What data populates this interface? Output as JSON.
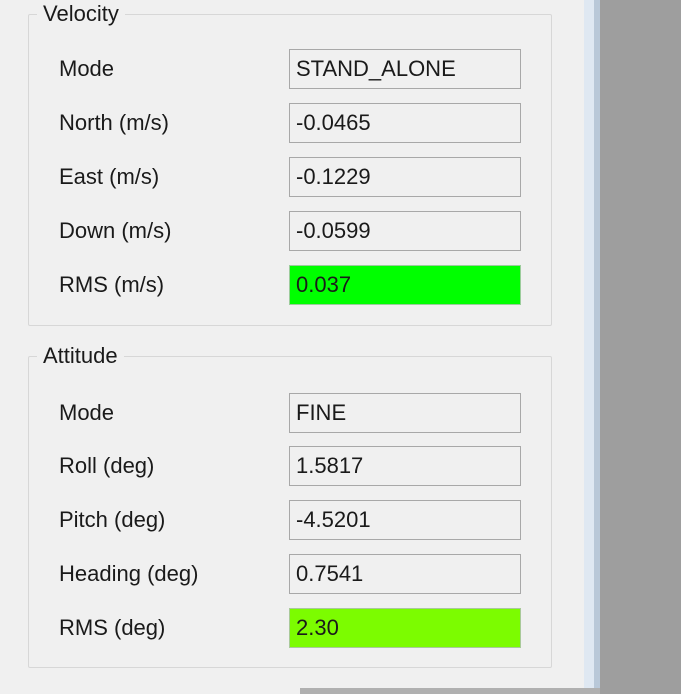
{
  "velocity": {
    "title": "Velocity",
    "rows": [
      {
        "label": "Mode",
        "value": "STAND_ALONE"
      },
      {
        "label": "North (m/s)",
        "value": "-0.0465"
      },
      {
        "label": "East (m/s)",
        "value": "-0.1229"
      },
      {
        "label": "Down (m/s)",
        "value": "-0.0599"
      },
      {
        "label": "RMS (m/s)",
        "value": "0.037"
      }
    ],
    "rms_color": "#00ff00"
  },
  "attitude": {
    "title": "Attitude",
    "rows": [
      {
        "label": "Mode",
        "value": "FINE"
      },
      {
        "label": "Roll (deg)",
        "value": "1.5817"
      },
      {
        "label": "Pitch (deg)",
        "value": "-4.5201"
      },
      {
        "label": "Heading (deg)",
        "value": "0.7541"
      },
      {
        "label": "RMS (deg)",
        "value": "2.30"
      }
    ],
    "rms_color": "#7cfc00"
  }
}
